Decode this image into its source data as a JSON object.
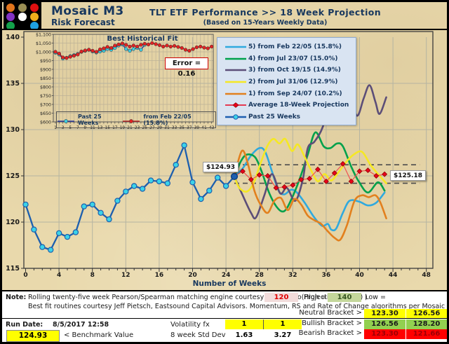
{
  "header": {
    "brand_title": "Mosaic M3",
    "brand_subtitle": "Risk Forecast",
    "title": "TLT  ETF Performance  >>  18 Week Projection",
    "subtitle": "(Based on 15-Years Weekly Data)",
    "logo_dot_colors": [
      "#E2751D",
      "#9B8F55",
      "#E01010",
      "#8233C4",
      "#FFFFFF",
      "#EFAF1C",
      "#13A04B",
      "#000000",
      "#1FA0E0"
    ]
  },
  "legend": {
    "entries": [
      {
        "label": "5)  from Feb 22/05 (15.8%)",
        "color": "#2FA9DE",
        "marker": "line"
      },
      {
        "label": "4)  from Jul 23/07 (15.0%)",
        "color": "#00A14B",
        "marker": "line"
      },
      {
        "label": "3)  from Oct 19/15 (14.9%)",
        "color": "#5C4E78",
        "marker": "line"
      },
      {
        "label": "2)  from Jul 31/06 (12.9%)",
        "color": "#F5E824",
        "marker": "line"
      },
      {
        "label": "1)  from Sep 24/07 (10.2%)",
        "color": "#E2801E",
        "marker": "line"
      },
      {
        "label": "Average 18-Week Projection",
        "color": "#E8001C",
        "marker": "diamond"
      },
      {
        "label": "Past 25 Weeks",
        "color": "#1E5FB0",
        "marker": "circle",
        "marker_fill": "#3BD3E8"
      }
    ]
  },
  "annotations": {
    "start_label": "$124.93",
    "end_label": "$125.18"
  },
  "inset": {
    "title": "Best Historical Fit",
    "error_label": "Error = 0.16",
    "legend": [
      {
        "label": "Past 25 Weeks",
        "color": "#2B3A9E",
        "marker_fill": "#3EC9DC"
      },
      {
        "label": "from Feb 22/05 (15.8%)",
        "color": "#B22222",
        "marker_fill": "#E02222"
      }
    ]
  },
  "chart_data": [
    {
      "type": "line",
      "title": "TLT ETF Performance 18 Week Projection",
      "xlabel": "Number of Weeks",
      "ylabel": "",
      "xlim": [
        0,
        48
      ],
      "ylim": [
        115,
        140
      ],
      "x_ticks": [
        0,
        4,
        8,
        12,
        16,
        20,
        24,
        28,
        32,
        36,
        40,
        44,
        48
      ],
      "y_ticks": [
        115,
        120,
        125,
        130,
        135,
        140
      ],
      "grid": true,
      "legend_position": "top-center",
      "dashed_lines": [
        {
          "value": 126.2,
          "from": 25,
          "to": 47.2
        },
        {
          "value": 124.2,
          "from": 25,
          "to": 47.2
        }
      ],
      "series": [
        {
          "name": "Past 25 Weeks",
          "role": "past",
          "color": "#1D5FAE",
          "marker": "circle",
          "marker_fill": "#3BD3E8",
          "x_start": 0,
          "values": [
            121.9,
            119.2,
            117.3,
            117.0,
            118.8,
            118.4,
            118.9,
            121.7,
            121.9,
            121.0,
            120.3,
            122.3,
            123.3,
            123.9,
            123.6,
            124.5,
            124.4,
            124.2,
            126.2,
            128.3,
            124.3,
            122.5,
            123.4,
            124.8,
            123.9,
            124.93
          ]
        },
        {
          "name": "5) from Feb 22/05 (15.8%)",
          "role": "projection",
          "color": "#2FA9DE",
          "points": [
            [
              25,
              124.93
            ],
            [
              26,
              125.8
            ],
            [
              27,
              127.2
            ],
            [
              28,
              128.0
            ],
            [
              28.7,
              127.6
            ],
            [
              29.5,
              125.5
            ],
            [
              30.3,
              123.4
            ],
            [
              31,
              123.0
            ],
            [
              31.8,
              123.5
            ],
            [
              32.5,
              123.2
            ],
            [
              33.5,
              122.0
            ],
            [
              34.5,
              120.6
            ],
            [
              35.5,
              119.6
            ],
            [
              36.2,
              119.8
            ],
            [
              36.6,
              119.2
            ],
            [
              37.2,
              119.3
            ],
            [
              38,
              121.0
            ],
            [
              38.8,
              122.3
            ],
            [
              40,
              122.2
            ],
            [
              41,
              121.8
            ],
            [
              42,
              122.1
            ],
            [
              43,
              123.2
            ]
          ]
        },
        {
          "name": "4) from Jul 23/07 (15.0%)",
          "role": "projection",
          "color": "#00A14B",
          "points": [
            [
              25,
              124.93
            ],
            [
              25.8,
              126.6
            ],
            [
              26.5,
              127.3
            ],
            [
              27.5,
              127.0
            ],
            [
              28.3,
              125.4
            ],
            [
              29.2,
              123.1
            ],
            [
              30.2,
              121.5
            ],
            [
              31,
              121.2
            ],
            [
              31.8,
              122.4
            ],
            [
              32.8,
              124.6
            ],
            [
              33.8,
              127.3
            ],
            [
              34.7,
              129.7
            ],
            [
              35.7,
              128.2
            ],
            [
              36.5,
              128.0
            ],
            [
              37.3,
              128.5
            ],
            [
              38,
              128.2
            ],
            [
              39,
              126.0
            ],
            [
              39.9,
              124.4
            ],
            [
              41,
              123.2
            ],
            [
              42.2,
              124.3
            ],
            [
              43,
              123.4
            ]
          ]
        },
        {
          "name": "3) from Oct 19/15 (14.9%)",
          "role": "projection",
          "color": "#5C4E78",
          "points": [
            [
              25,
              124.93
            ],
            [
              26,
              122.9
            ],
            [
              27,
              121.0
            ],
            [
              27.6,
              120.5
            ],
            [
              28.6,
              122.9
            ],
            [
              29.5,
              125.2
            ],
            [
              30.5,
              123.1
            ],
            [
              31.3,
              123.7
            ],
            [
              32.3,
              122.3
            ],
            [
              33.2,
              124.6
            ],
            [
              33.8,
              128.0
            ],
            [
              34.6,
              128.7
            ],
            [
              35.6,
              130.3
            ],
            [
              36.6,
              133.6
            ],
            [
              37.5,
              136.4
            ],
            [
              38,
              136.8
            ],
            [
              38.9,
              134.0
            ],
            [
              39.7,
              131.5
            ],
            [
              40.5,
              133.4
            ],
            [
              41.2,
              134.8
            ],
            [
              41.9,
              133.0
            ],
            [
              42.4,
              131.7
            ],
            [
              43.2,
              133.5
            ]
          ]
        },
        {
          "name": "2) from Jul 31/06 (12.9%)",
          "role": "projection",
          "color": "#F5E824",
          "points": [
            [
              25,
              124.93
            ],
            [
              25.6,
              123.7
            ],
            [
              26.5,
              123.3
            ],
            [
              27.3,
              124.2
            ],
            [
              28.2,
              126.5
            ],
            [
              29,
              128.3
            ],
            [
              29.7,
              129.0
            ],
            [
              30.4,
              128.5
            ],
            [
              31.1,
              129.0
            ],
            [
              31.9,
              127.7
            ],
            [
              32.6,
              128.4
            ],
            [
              33.4,
              127.1
            ],
            [
              34.2,
              125.6
            ],
            [
              35,
              124.4
            ],
            [
              35.8,
              125.2
            ],
            [
              36.6,
              124.5
            ],
            [
              37.4,
              125.3
            ],
            [
              38.3,
              126.4
            ],
            [
              39.3,
              127.3
            ],
            [
              40.3,
              127.6
            ],
            [
              41.3,
              126.2
            ],
            [
              42.3,
              125.1
            ],
            [
              43.2,
              124.2
            ]
          ]
        },
        {
          "name": "1) from Sep 24/07 (10.2%)",
          "role": "projection",
          "color": "#E2801E",
          "points": [
            [
              25,
              124.93
            ],
            [
              25.9,
              127.7
            ],
            [
              26.6,
              126.4
            ],
            [
              27.4,
              123.4
            ],
            [
              28.2,
              121.8
            ],
            [
              29,
              121.0
            ],
            [
              29.8,
              122.3
            ],
            [
              30.6,
              122.6
            ],
            [
              31.4,
              121.3
            ],
            [
              32.2,
              122.5
            ],
            [
              33,
              121.9
            ],
            [
              33.8,
              120.7
            ],
            [
              34.6,
              120.2
            ],
            [
              35.4,
              119.8
            ],
            [
              36.2,
              119.0
            ],
            [
              37,
              118.3
            ],
            [
              37.7,
              118.1
            ],
            [
              38.5,
              119.7
            ],
            [
              39.4,
              122.3
            ],
            [
              40.3,
              122.9
            ],
            [
              41.1,
              122.7
            ],
            [
              41.9,
              122.9
            ],
            [
              42.5,
              122.1
            ],
            [
              43.2,
              120.4
            ]
          ]
        },
        {
          "name": "Average 18-Week Projection",
          "role": "average",
          "color": "#E8001C",
          "points": [
            [
              25,
              124.93
            ],
            [
              26,
              125.5
            ],
            [
              27,
              124.6
            ],
            [
              28,
              125.1
            ],
            [
              29,
              125.0
            ],
            [
              30,
              123.7
            ],
            [
              31,
              123.8
            ],
            [
              32,
              124.0
            ],
            [
              33,
              124.6
            ],
            [
              34,
              124.7
            ],
            [
              35,
              125.7
            ],
            [
              36,
              124.4
            ],
            [
              37,
              125.3
            ],
            [
              38,
              126.3
            ],
            [
              39,
              124.4
            ],
            [
              40,
              125.5
            ],
            [
              41,
              125.6
            ],
            [
              42,
              125.0
            ],
            [
              43,
              125.18
            ]
          ]
        }
      ]
    },
    {
      "type": "line",
      "title": "Best Historical Fit",
      "xlabel": "",
      "ylabel": "",
      "xlim": [
        1,
        43
      ],
      "ylim": [
        600,
        1100
      ],
      "x_ticks": [
        1,
        3,
        5,
        7,
        9,
        11,
        13,
        15,
        17,
        19,
        21,
        23,
        25,
        27,
        29,
        31,
        33,
        35,
        37,
        39,
        41,
        43
      ],
      "y_tick_labels": [
        "$1,100",
        "$1,050",
        "$1,000",
        "$950",
        "$900",
        "$850",
        "$800",
        "$750",
        "$700",
        "$650",
        "$600"
      ],
      "grid": true,
      "error_label": "Error = 0.16",
      "series": [
        {
          "name": "Past 25 Weeks",
          "color": "#2B3A9E",
          "marker": "circle",
          "marker_fill": "#3EC9DC",
          "x_start": 1,
          "values": [
            995,
            985,
            962,
            966,
            976,
            982,
            988,
            1000,
            1006,
            1012,
            1002,
            996,
            1002,
            1006,
            1016,
            1012,
            1022,
            1036,
            1042,
            1016,
            1006,
            1016,
            1022,
            1012,
            1040
          ]
        },
        {
          "name": "from Feb 22/05 (15.8%)",
          "color": "#B22222",
          "marker": "circle",
          "marker_fill": "#E02222",
          "x_start": 1,
          "values": [
            1000,
            990,
            968,
            965,
            972,
            978,
            985,
            1002,
            1008,
            1012,
            1006,
            1000,
            1014,
            1020,
            1028,
            1022,
            1036,
            1042,
            1048,
            1040,
            1030,
            1036,
            1030,
            1040,
            1046,
            1042,
            1050,
            1044,
            1038,
            1030,
            1036,
            1030,
            1034,
            1028,
            1022,
            1012,
            1006,
            1016,
            1026,
            1030,
            1024,
            1020,
            1030
          ]
        }
      ]
    }
  ],
  "footer": {
    "note_label": "Note:",
    "note_line1": "Rolling twenty-five week Pearson/Spearman matching engine courtesy of P. Ponzo(Projection Range) Low =",
    "low_value": "120",
    "high_label": "High =",
    "high_value": "140",
    "note_paren": ")",
    "note_line2": "Best fit routines courtesy Jeff Pietsch, Eastsound Capital Advisors.    Momentum, RS and Rate of Change algorithms per Mosaic M3 Forecast Model",
    "run_date_label": "Run Date:",
    "run_date": "8/5/2017 12:58",
    "benchmark_value": "124.93",
    "benchmark_label": "< Benchmark Value",
    "volatility_label": "Volatility fx",
    "volatility_values": [
      "1",
      "1"
    ],
    "stddev_label": "8 week Std Dev",
    "stddev_values": [
      "1.63",
      "3.27"
    ],
    "brackets": [
      {
        "label": "Neutral Bracket >",
        "values": [
          "123.30",
          "126.56"
        ],
        "bg": "#FFFF00",
        "color": "#1a1a1a"
      },
      {
        "label": "Bullish Bracket >",
        "values": [
          "126.56",
          "128.20"
        ],
        "bg": "#92D050",
        "color": "#1a1a1a"
      },
      {
        "label": "Bearish Bracket >",
        "values": [
          "123.30",
          "121.66"
        ],
        "bg": "#FF0000",
        "color": "#9C0006"
      }
    ]
  }
}
